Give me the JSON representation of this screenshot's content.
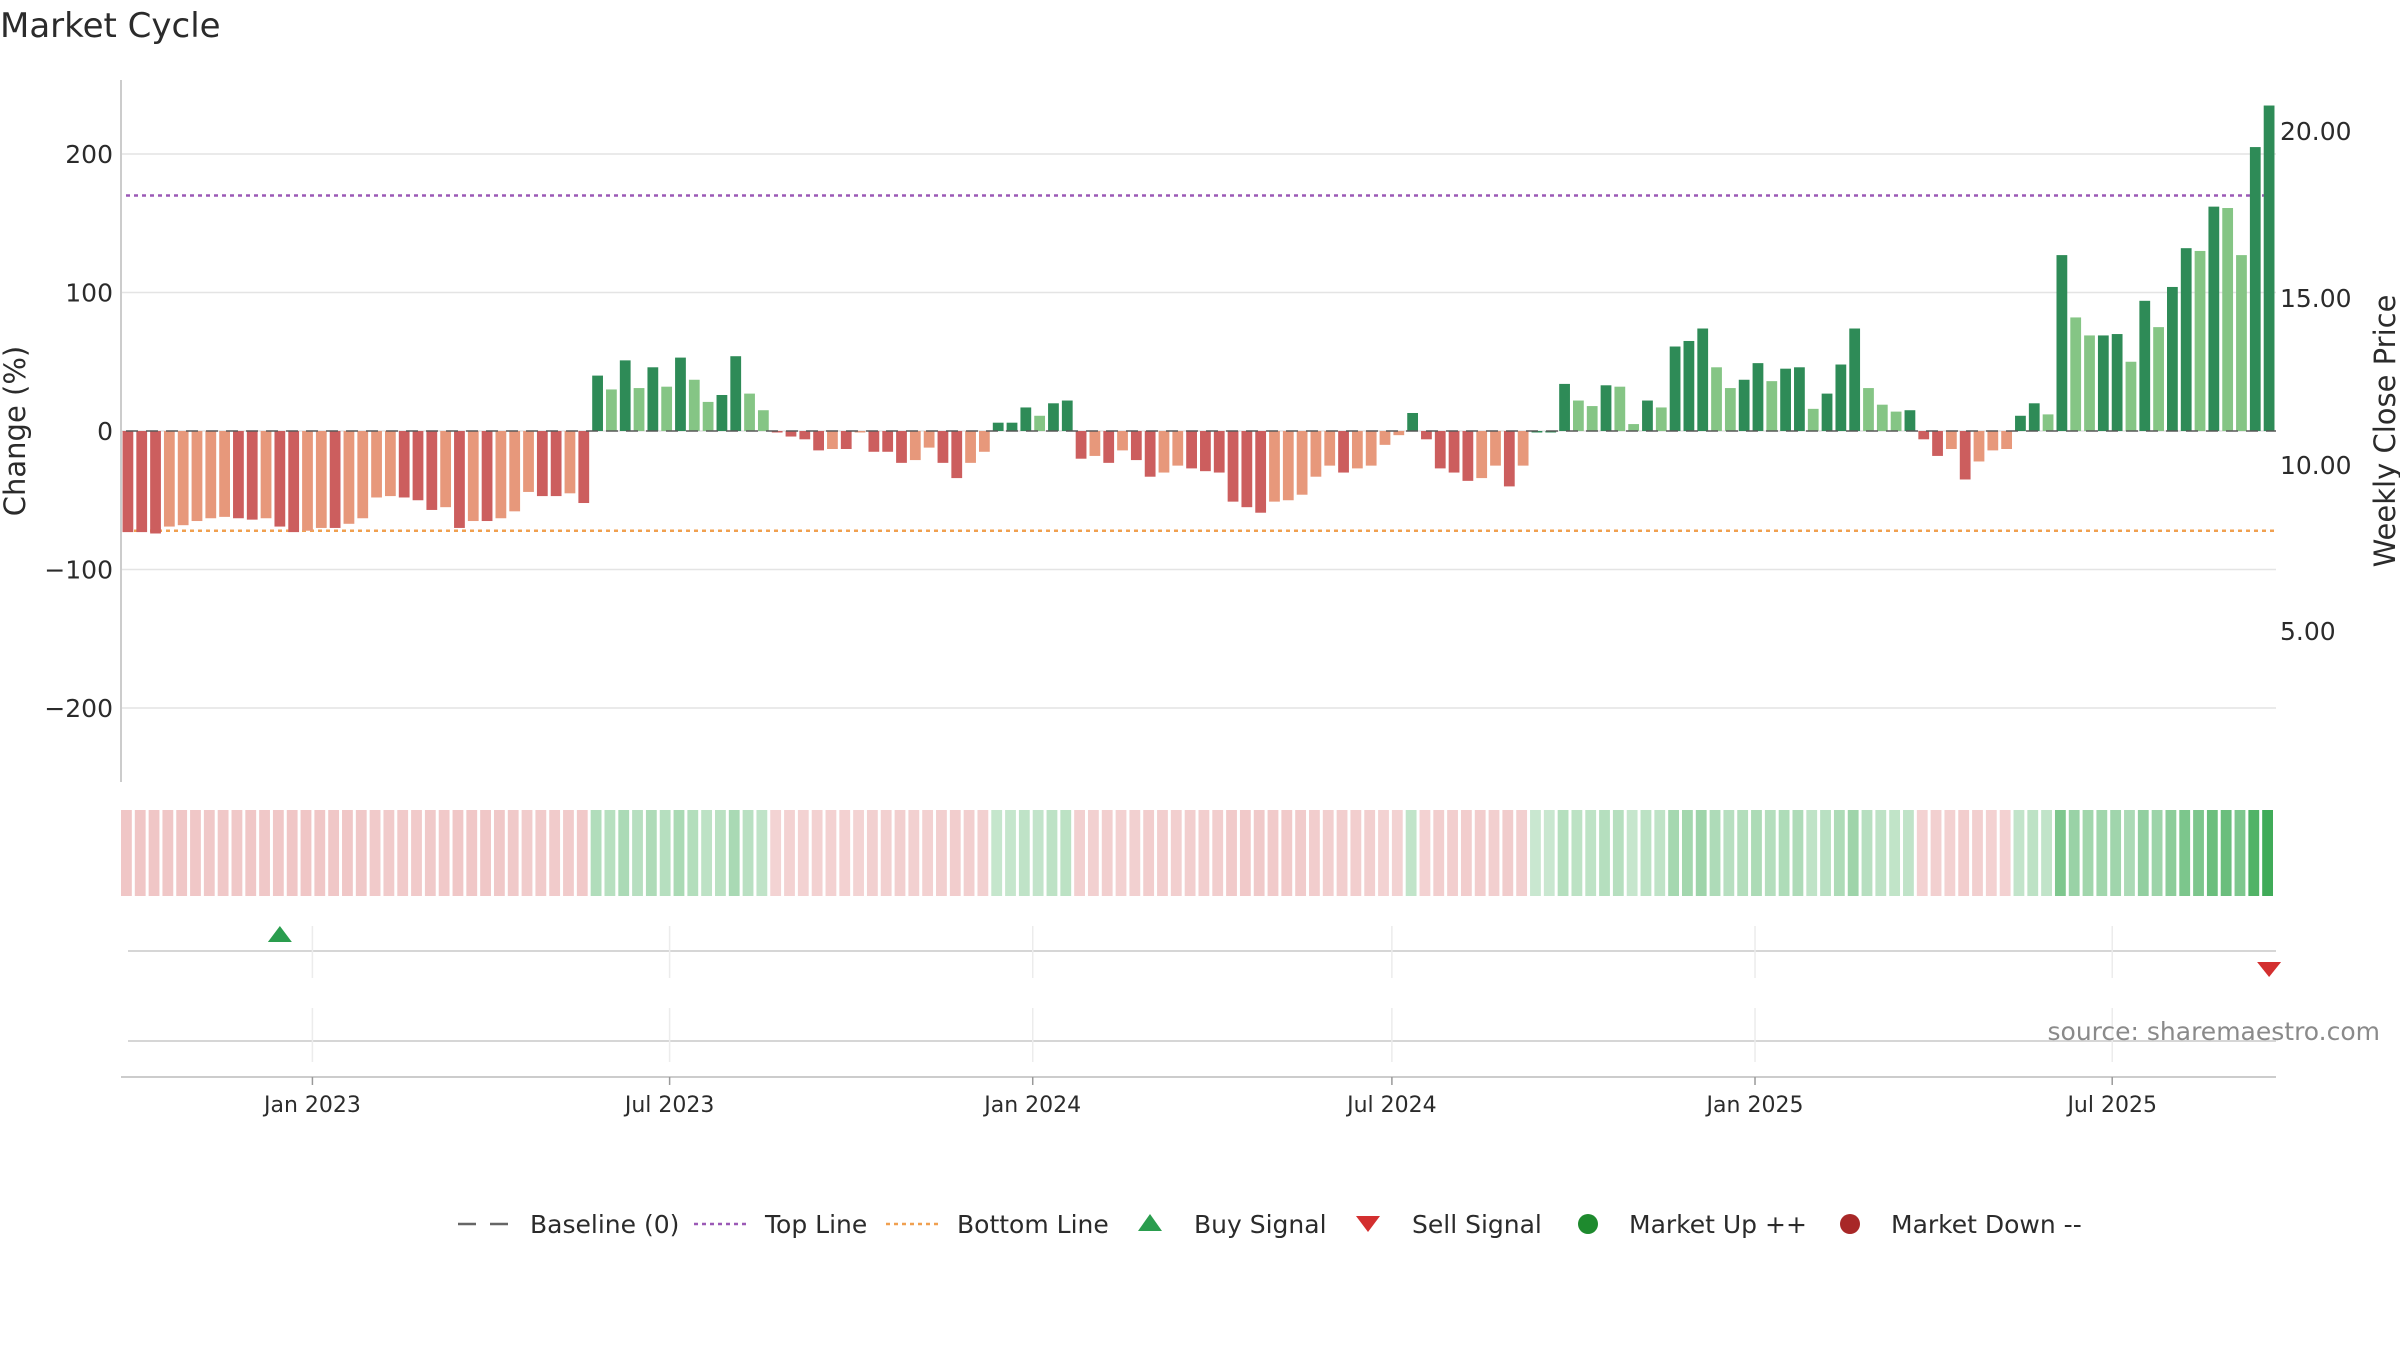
{
  "chart_data": {
    "type": "bar",
    "title": "Market Cycle",
    "ylabel": "Change (%)",
    "y2label": "Weekly Close Price",
    "ylim": [
      -255,
      255
    ],
    "y_ticks": [
      -200,
      -100,
      0,
      100,
      200
    ],
    "y_tick_labels": [
      "−200",
      "−100",
      "0",
      "100",
      "200"
    ],
    "y2_ticks": [
      "5.00",
      "10.00",
      "15.00",
      "20.00"
    ],
    "x_ticks": [
      "Jan 2023",
      "Jul 2023",
      "Jan 2024",
      "Jul 2024",
      "Jan 2025",
      "Jul 2025"
    ],
    "grid": true,
    "top_line": 170,
    "bottom_line": -72,
    "start_date": "2022-09-26",
    "interval_days": 7,
    "values": [
      -73,
      -73,
      -74,
      -69,
      -68,
      -65,
      -63,
      -62,
      -63,
      -64,
      -63,
      -69,
      -73,
      -72,
      -70,
      -70,
      -67,
      -63,
      -48,
      -47,
      -48,
      -50,
      -57,
      -55,
      -70,
      -65,
      -65,
      -63,
      -58,
      -44,
      -47,
      -47,
      -45,
      -52,
      40,
      30,
      51,
      31,
      46,
      32,
      53,
      37,
      21,
      26,
      54,
      27,
      15,
      -1,
      -4,
      -6,
      -14,
      -13,
      -13,
      -1,
      -15,
      -15,
      -23,
      -21,
      -12,
      -23,
      -34,
      -23,
      -15,
      6,
      6,
      17,
      11,
      20,
      22,
      -20,
      -18,
      -23,
      -14,
      -21,
      -33,
      -30,
      -25,
      -27,
      -29,
      -30,
      -51,
      -55,
      -59,
      -51,
      -50,
      -46,
      -33,
      -25,
      -30,
      -27,
      -25,
      -10,
      -3,
      13,
      -6,
      -27,
      -30,
      -36,
      -34,
      -25,
      -40,
      -25,
      0,
      0,
      34,
      22,
      18,
      33,
      32,
      5,
      22,
      17,
      61,
      65,
      74,
      46,
      31,
      37,
      49,
      36,
      45,
      46,
      16,
      27,
      48,
      74,
      31,
      19,
      14,
      15,
      -6,
      -18,
      -13,
      -35,
      -22,
      -14,
      -13,
      11,
      20,
      12,
      127,
      82,
      69,
      69,
      70,
      50,
      94,
      75,
      104,
      132,
      130,
      162,
      161,
      127,
      205,
      235
    ],
    "colors": {
      "up_dark": "#2e8b57",
      "up_light": "#85c585",
      "down_dark": "#cc5e5e",
      "down_light": "#e7987b",
      "top_line": "#9b59b6",
      "bottom_line": "#f0a050",
      "baseline": "#555555",
      "buy": "#2a9d4e",
      "sell": "#d32f2f",
      "market_up": "#1e8a2e",
      "market_down": "#a82828",
      "heat_up_strong": "#3daa55",
      "heat_down_strong": "#d05050"
    },
    "signals": [
      {
        "type": "buy",
        "date": "2022-12-12"
      },
      {
        "type": "sell",
        "date": "2025-09-15"
      }
    ],
    "legend": [
      {
        "label": "Baseline (0)",
        "marker": "dash"
      },
      {
        "label": "Top Line",
        "marker": "dot-purple"
      },
      {
        "label": "Bottom Line",
        "marker": "dot-orange"
      },
      {
        "label": "Buy Signal",
        "marker": "triangle-up"
      },
      {
        "label": "Sell Signal",
        "marker": "triangle-down"
      },
      {
        "label": "Market Up ++",
        "marker": "circle-green"
      },
      {
        "label": "Market Down --",
        "marker": "circle-red"
      }
    ],
    "legend_position": "bottom",
    "source": "source: sharemaestro.com"
  }
}
